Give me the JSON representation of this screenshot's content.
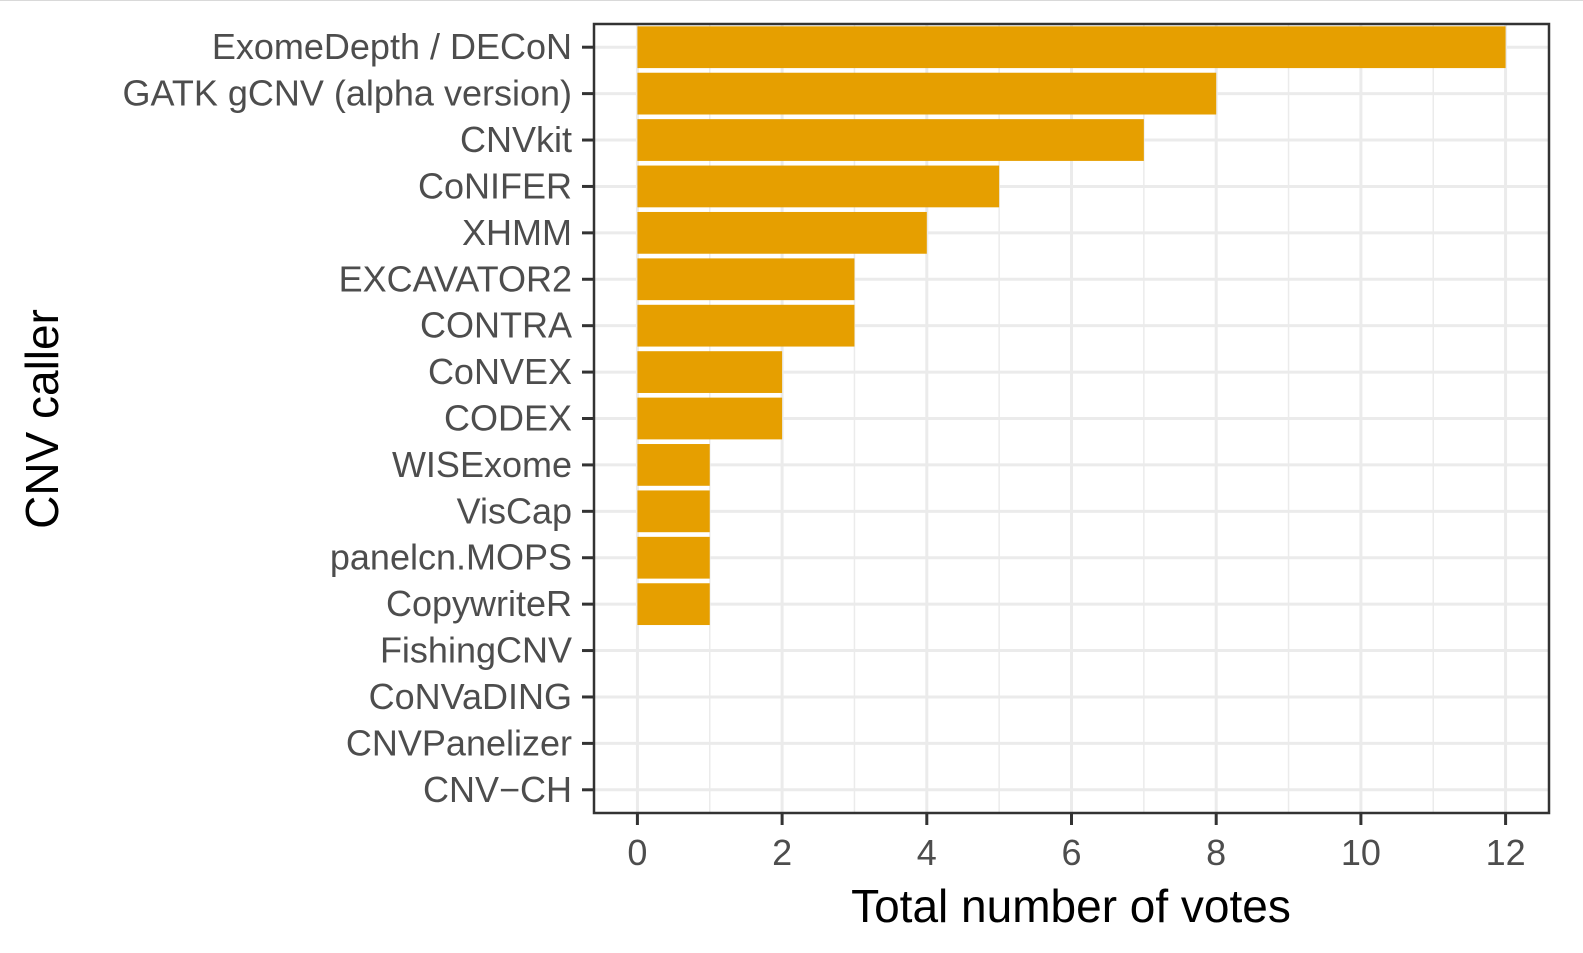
{
  "chart_data": {
    "type": "bar",
    "orientation": "horizontal",
    "xlabel": "Total number of votes",
    "ylabel": "CNV caller",
    "xlim": [
      -0.6,
      12.6
    ],
    "xticks": [
      "0",
      "2",
      "4",
      "6",
      "8",
      "10",
      "12"
    ],
    "grid": true,
    "bar_color": "#E69F00",
    "categories": [
      "ExomeDepth / DECoN",
      "GATK gCNV (alpha version)",
      "CNVkit",
      "CoNIFER",
      "XHMM",
      "EXCAVATOR2",
      "CONTRA",
      "CoNVEX",
      "CODEX",
      "WISExome",
      "VisCap",
      "panelcn.MOPS",
      "CopywriteR",
      "FishingCNV",
      "CoNVaDING",
      "CNVPanelizer",
      "CNV−CH"
    ],
    "values": [
      12,
      8,
      7,
      5,
      4,
      3,
      3,
      2,
      2,
      1,
      1,
      1,
      1,
      0,
      0,
      0,
      0
    ]
  }
}
